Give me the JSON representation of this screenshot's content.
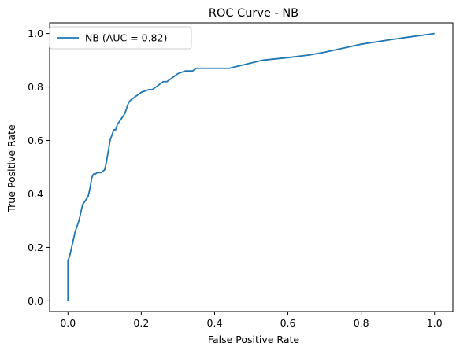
{
  "chart_data": {
    "type": "line",
    "title": "ROC Curve - NB",
    "xlabel": "False Positive Rate",
    "ylabel": "True Positive Rate",
    "xlim": [
      -0.05,
      1.05
    ],
    "ylim": [
      -0.04,
      1.04
    ],
    "xticks": [
      "0.0",
      "0.2",
      "0.4",
      "0.6",
      "0.8",
      "1.0"
    ],
    "yticks": [
      "0.0",
      "0.2",
      "0.4",
      "0.6",
      "0.8",
      "1.0"
    ],
    "grid": false,
    "legend": {
      "placement": "top-left"
    },
    "series": [
      {
        "name": "NB (AUC = 0.82)",
        "color": "#1f77b4",
        "x": [
          0.0,
          0.0,
          0.005,
          0.01,
          0.015,
          0.02,
          0.025,
          0.03,
          0.035,
          0.04,
          0.045,
          0.05,
          0.055,
          0.06,
          0.065,
          0.068,
          0.07,
          0.075,
          0.08,
          0.09,
          0.1,
          0.105,
          0.11,
          0.115,
          0.12,
          0.125,
          0.13,
          0.135,
          0.14,
          0.15,
          0.155,
          0.16,
          0.165,
          0.17,
          0.18,
          0.19,
          0.2,
          0.21,
          0.22,
          0.23,
          0.24,
          0.25,
          0.26,
          0.27,
          0.28,
          0.3,
          0.32,
          0.34,
          0.35,
          0.37,
          0.44,
          0.5,
          0.53,
          0.6,
          0.66,
          0.7,
          0.75,
          0.8,
          0.87,
          0.92,
          1.0
        ],
        "y": [
          0.0,
          0.15,
          0.17,
          0.2,
          0.23,
          0.26,
          0.28,
          0.3,
          0.33,
          0.36,
          0.37,
          0.38,
          0.39,
          0.42,
          0.46,
          0.47,
          0.475,
          0.475,
          0.48,
          0.48,
          0.49,
          0.52,
          0.56,
          0.6,
          0.62,
          0.64,
          0.64,
          0.66,
          0.67,
          0.69,
          0.7,
          0.72,
          0.74,
          0.75,
          0.76,
          0.77,
          0.78,
          0.785,
          0.79,
          0.79,
          0.8,
          0.81,
          0.82,
          0.82,
          0.83,
          0.85,
          0.86,
          0.86,
          0.87,
          0.87,
          0.87,
          0.89,
          0.9,
          0.91,
          0.92,
          0.93,
          0.945,
          0.96,
          0.975,
          0.985,
          1.0
        ]
      }
    ]
  }
}
